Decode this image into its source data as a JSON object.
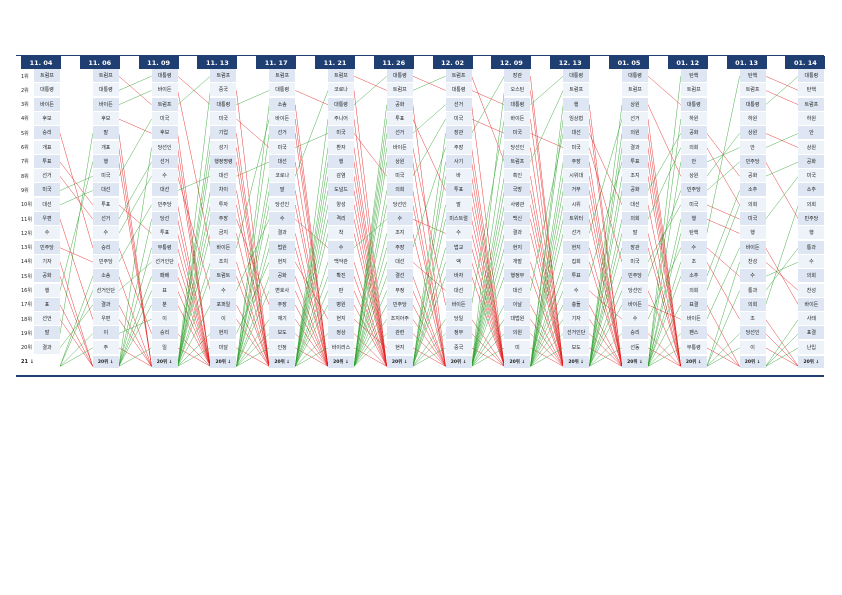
{
  "chart_data": {
    "type": "table",
    "rank_labels": [
      "1위",
      "2위",
      "3위",
      "4위",
      "5위",
      "6위",
      "7위",
      "8위",
      "9위",
      "10위",
      "11위",
      "12위",
      "13위",
      "14위",
      "15위",
      "16위",
      "17위",
      "18위",
      "19위",
      "20위"
    ],
    "more_label": "21 ↓",
    "columns": [
      {
        "date": "11. 04",
        "footer": "",
        "terms": [
          "트럼프",
          "대통령",
          "바이든",
          "후보",
          "승리",
          "개표",
          "투표",
          "선거",
          "미국",
          "대선",
          "우편",
          "수",
          "민주당",
          "기자",
          "공화",
          "행",
          "표",
          "선언",
          "말",
          "결과"
        ]
      },
      {
        "date": "11. 06",
        "footer": "20위 ↓",
        "terms": [
          "트럼프",
          "대통령",
          "바이든",
          "후보",
          "말",
          "개표",
          "행",
          "미국",
          "대선",
          "투표",
          "선거",
          "수",
          "승리",
          "민주당",
          "소송",
          "선거인단",
          "결과",
          "우편",
          "이",
          "주"
        ]
      },
      {
        "date": "11. 09",
        "footer": "20위 ↓",
        "terms": [
          "대통령",
          "바이든",
          "트럼프",
          "미국",
          "후보",
          "당선인",
          "선거",
          "수",
          "대선",
          "민주당",
          "당선",
          "투표",
          "부통령",
          "선거인단",
          "패배",
          "표",
          "분",
          "이",
          "승리",
          "일"
        ]
      },
      {
        "date": "11. 13",
        "footer": "20위 ↓",
        "terms": [
          "트럼프",
          "중국",
          "대통령",
          "미국",
          "기업",
          "성기",
          "행정명령",
          "대선",
          "차이",
          "투자",
          "주장",
          "금지",
          "바이든",
          "조치",
          "트럼트",
          "수",
          "포퍼일",
          "이",
          "현지",
          "미달"
        ]
      },
      {
        "date": "11. 17",
        "footer": "20위 ↓",
        "terms": [
          "트럼프",
          "대통령",
          "소송",
          "바이든",
          "선거",
          "미국",
          "대선",
          "코로나",
          "말",
          "당선인",
          "수",
          "결과",
          "법원",
          "현지",
          "공화",
          "변호사",
          "주장",
          "재기",
          "보도",
          "인정"
        ]
      },
      {
        "date": "11. 21",
        "footer": "20위 ↓",
        "terms": [
          "트럼프",
          "코로나",
          "대통령",
          "주니어",
          "미국",
          "환자",
          "행",
          "감염",
          "도널드",
          "양성",
          "격리",
          "착",
          "수",
          "백악관",
          "확진",
          "판",
          "병원",
          "현지",
          "정상",
          "바이러스"
        ]
      },
      {
        "date": "11. 26",
        "footer": "20위 ↓",
        "terms": [
          "대통령",
          "트럼프",
          "공화",
          "투표",
          "선거",
          "바이든",
          "상원",
          "미국",
          "의회",
          "당선인",
          "수",
          "조지",
          "주장",
          "대선",
          "결선",
          "부정",
          "민주당",
          "조지아주",
          "관련",
          "현지"
        ]
      },
      {
        "date": "12. 02",
        "footer": "20위 ↓",
        "terms": [
          "트럼프",
          "대통령",
          "선거",
          "미국",
          "장관",
          "주장",
          "사기",
          "바",
          "투표",
          "말",
          "미스트럴",
          "수",
          "법교",
          "액",
          "바자",
          "대선",
          "바이든",
          "당일",
          "정부",
          "중국"
        ]
      },
      {
        "date": "12. 09",
        "footer": "20위 ↓",
        "terms": [
          "장관",
          "오스틴",
          "대통령",
          "바이든",
          "미국",
          "당선인",
          "트럼프",
          "흑인",
          "국방",
          "사령관",
          "백신",
          "결과",
          "현지",
          "개발",
          "행정부",
          "대선",
          "이날",
          "대법원",
          "의원",
          "미"
        ]
      },
      {
        "date": "12. 13",
        "footer": "20위 ↓",
        "terms": [
          "대통령",
          "트럼프",
          "행",
          "임상협",
          "대선",
          "미국",
          "주장",
          "시위대",
          "거부",
          "시위",
          "트위터",
          "선거",
          "현지",
          "집회",
          "투표",
          "수",
          "충돌",
          "기자",
          "선거인단",
          "보도"
        ]
      },
      {
        "date": "01. 05",
        "footer": "20위 ↓",
        "terms": [
          "대통령",
          "트럼프",
          "상원",
          "선거",
          "의원",
          "결과",
          "투표",
          "조지",
          "공화",
          "대선",
          "의회",
          "말",
          "장관",
          "미국",
          "민주당",
          "당선인",
          "바이든",
          "수",
          "승리",
          "선동"
        ]
      },
      {
        "date": "01. 12",
        "footer": "20위 ↓",
        "terms": [
          "탄핵",
          "트럼프",
          "대통령",
          "하원",
          "공화",
          "의회",
          "안",
          "상원",
          "민주당",
          "미국",
          "행",
          "탄핵",
          "수",
          "조",
          "소추",
          "의회",
          "표결",
          "바이든",
          "펜스",
          "부통령"
        ]
      },
      {
        "date": "01. 13",
        "footer": "20위 ↓",
        "terms": [
          "탄핵",
          "트럼프",
          "대통령",
          "하원",
          "상원",
          "안",
          "민주당",
          "공화",
          "소추",
          "의회",
          "미국",
          "행",
          "바이든",
          "찬성",
          "수",
          "통과",
          "의회",
          "조",
          "당선인",
          "이"
        ]
      },
      {
        "date": "01. 14",
        "footer": "20위 ↓",
        "terms": [
          "대통령",
          "탄핵",
          "트럼프",
          "하원",
          "안",
          "상원",
          "공화",
          "미국",
          "소추",
          "의회",
          "민주당",
          "행",
          "통과",
          "수",
          "의회",
          "찬성",
          "바이든",
          "사태",
          "표결",
          "난입"
        ]
      }
    ],
    "link_colors": {
      "up": "#2ca02c",
      "down": "#e41a1c",
      "same": "#3333cc"
    }
  }
}
